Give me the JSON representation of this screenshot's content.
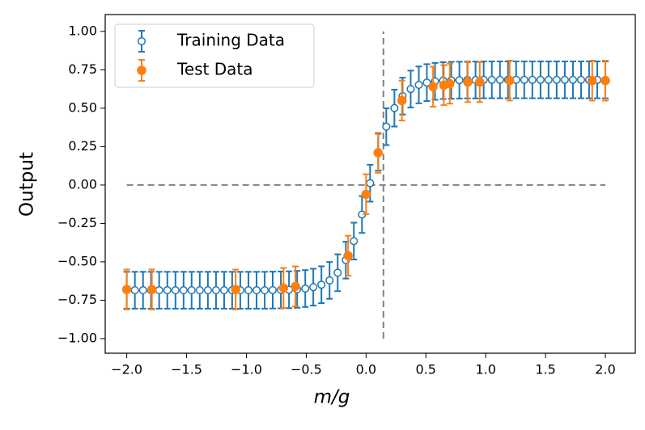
{
  "chart_data": {
    "type": "errorbar",
    "xlabel": "m/g",
    "ylabel": "Output",
    "xlim": [
      -2.18,
      2.25
    ],
    "ylim": [
      -1.095,
      1.11
    ],
    "xticks": [
      {
        "value": -2,
        "label": "−2.0"
      },
      {
        "value": -1.5,
        "label": "−1.5"
      },
      {
        "value": -1,
        "label": "−1.0"
      },
      {
        "value": -0.5,
        "label": "−0.5"
      },
      {
        "value": 0,
        "label": "0.0"
      },
      {
        "value": 0.5,
        "label": "0.5"
      },
      {
        "value": 1,
        "label": "1.0"
      },
      {
        "value": 1.5,
        "label": "1.5"
      },
      {
        "value": 2,
        "label": "2.0"
      }
    ],
    "yticks": [
      {
        "value": -1,
        "label": "−1.00"
      },
      {
        "value": -0.75,
        "label": "−0.75"
      },
      {
        "value": -0.5,
        "label": "−0.50"
      },
      {
        "value": -0.25,
        "label": "−0.25"
      },
      {
        "value": 0,
        "label": "0.00"
      },
      {
        "value": 0.25,
        "label": "0.25"
      },
      {
        "value": 0.5,
        "label": "0.50"
      },
      {
        "value": 0.75,
        "label": "0.75"
      },
      {
        "value": 1,
        "label": "1.00"
      }
    ],
    "legend": "upper left",
    "reference_lines": [
      {
        "x": 0.145,
        "ymin": -1,
        "ymax": 1
      },
      {
        "y": 0,
        "xmin": -2,
        "xmax": 2
      }
    ],
    "series": [
      {
        "name": "Training Data",
        "color": "#1f77b4",
        "filled": false,
        "error": 0.12,
        "x": [
          -2.0,
          -1.932,
          -1.864,
          -1.797,
          -1.729,
          -1.661,
          -1.593,
          -1.525,
          -1.458,
          -1.39,
          -1.322,
          -1.254,
          -1.186,
          -1.119,
          -1.051,
          -0.983,
          -0.915,
          -0.847,
          -0.78,
          -0.712,
          -0.644,
          -0.576,
          -0.508,
          -0.441,
          -0.373,
          -0.305,
          -0.237,
          -0.169,
          -0.102,
          -0.034,
          0.034,
          0.102,
          0.169,
          0.237,
          0.305,
          0.373,
          0.441,
          0.508,
          0.576,
          0.644,
          0.712,
          0.78,
          0.847,
          0.915,
          0.983,
          1.051,
          1.119,
          1.186,
          1.254,
          1.322,
          1.39,
          1.458,
          1.525,
          1.593,
          1.661,
          1.729,
          1.797,
          1.864,
          1.932,
          2.0
        ],
        "values": [
          -0.685,
          -0.685,
          -0.685,
          -0.685,
          -0.685,
          -0.685,
          -0.685,
          -0.685,
          -0.685,
          -0.685,
          -0.685,
          -0.685,
          -0.685,
          -0.685,
          -0.685,
          -0.685,
          -0.685,
          -0.685,
          -0.684,
          -0.683,
          -0.682,
          -0.679,
          -0.674,
          -0.665,
          -0.649,
          -0.621,
          -0.571,
          -0.489,
          -0.365,
          -0.192,
          0.012,
          0.214,
          0.38,
          0.501,
          0.579,
          0.625,
          0.652,
          0.667,
          0.675,
          0.68,
          0.682,
          0.683,
          0.684,
          0.684,
          0.685,
          0.685,
          0.685,
          0.685,
          0.685,
          0.685,
          0.685,
          0.685,
          0.685,
          0.685,
          0.685,
          0.685,
          0.685,
          0.685,
          0.685,
          0.685
        ]
      },
      {
        "name": "Test Data",
        "color": "#ff7f0e",
        "filled": true,
        "error": 0.13,
        "x": [
          -2.0,
          -1.79,
          -1.09,
          -0.69,
          -0.59,
          -0.15,
          0.0,
          0.1,
          0.3,
          0.56,
          0.65,
          0.7,
          0.85,
          0.95,
          1.2,
          1.89,
          2.0
        ],
        "values": [
          -0.68,
          -0.68,
          -0.68,
          -0.67,
          -0.66,
          -0.46,
          -0.06,
          0.21,
          0.55,
          0.64,
          0.65,
          0.66,
          0.67,
          0.67,
          0.68,
          0.68,
          0.68
        ]
      }
    ]
  }
}
